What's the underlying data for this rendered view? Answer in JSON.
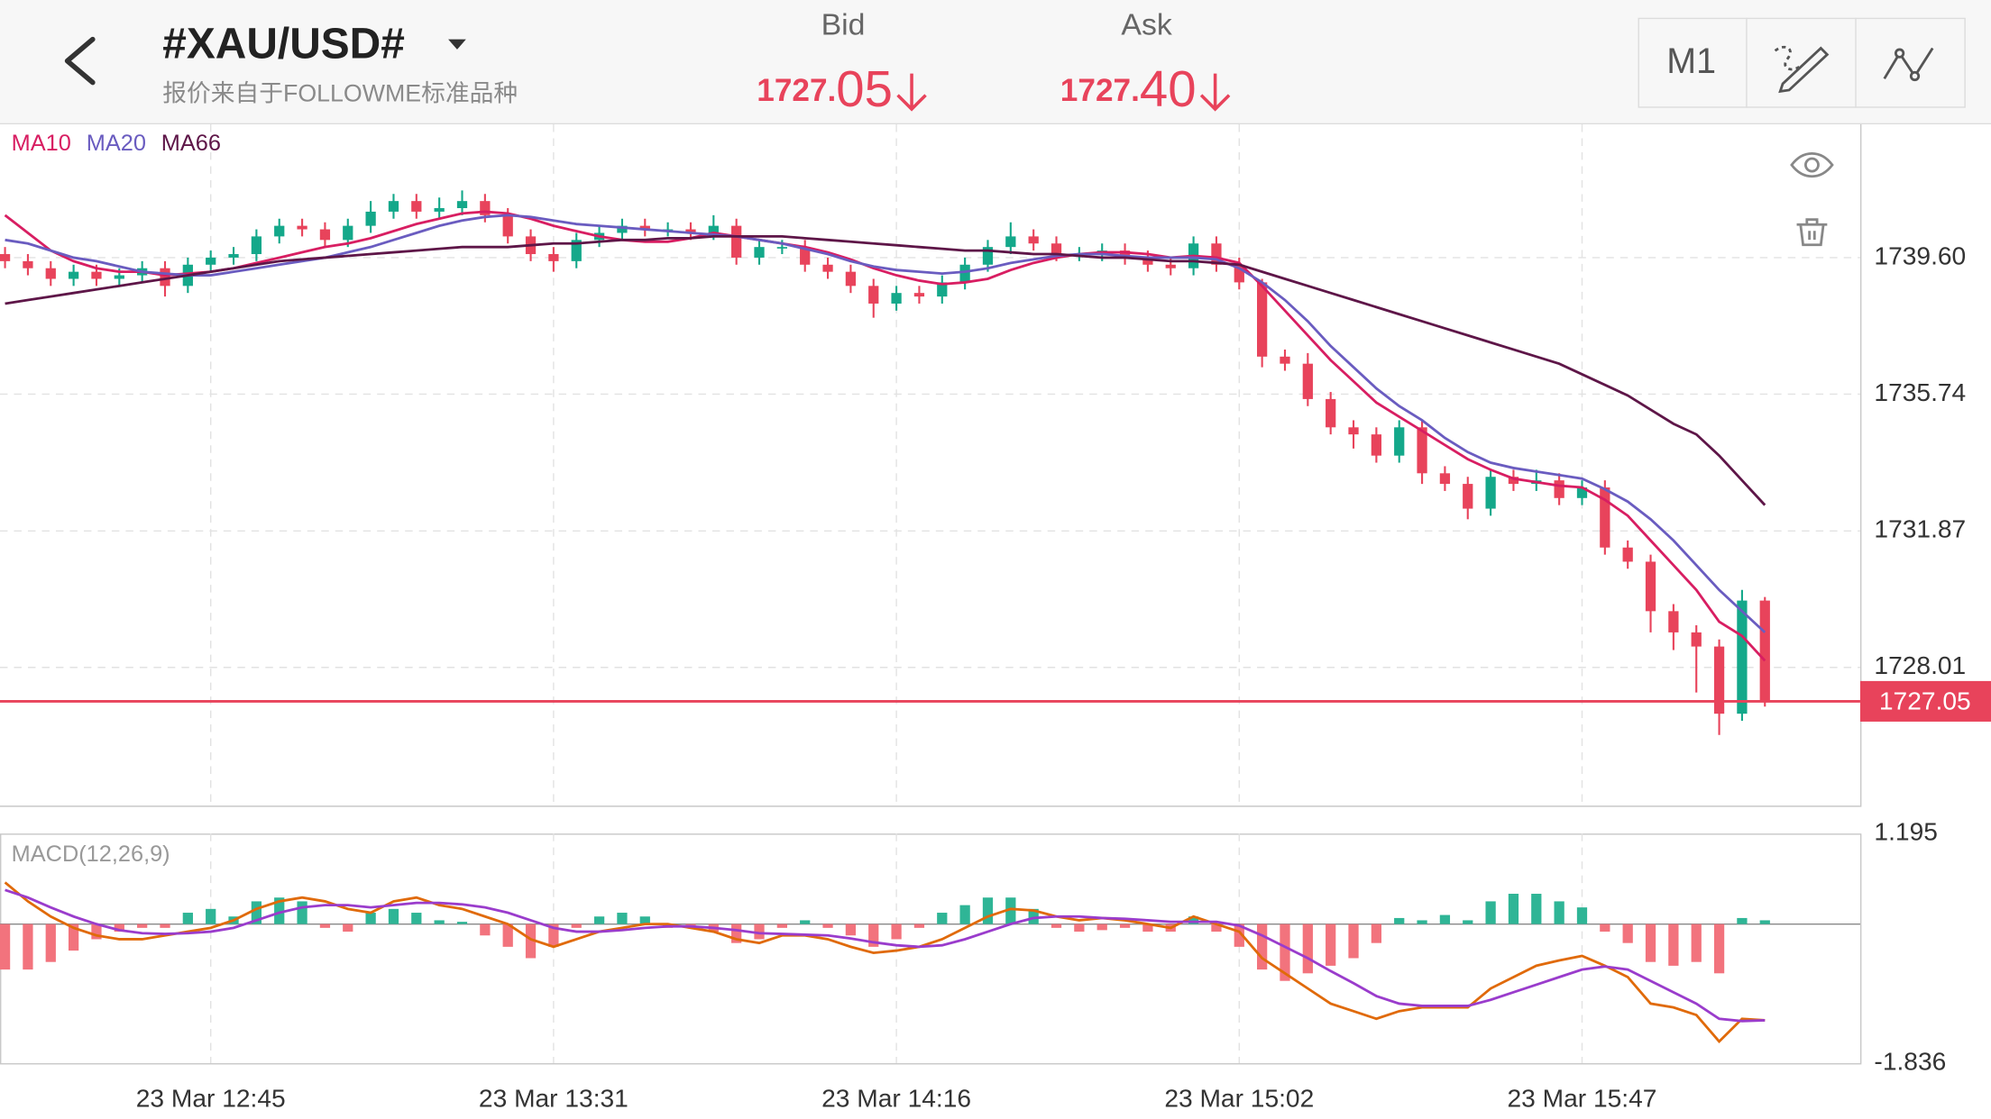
{
  "header": {
    "symbol": "#XAU/USD#",
    "source": "报价来自于FOLLOWME标准品种",
    "bid": {
      "label": "Bid",
      "price_lead": "1727.",
      "price_pips": "05"
    },
    "ask": {
      "label": "Ask",
      "price_lead": "1727.",
      "price_pips": "40"
    }
  },
  "toolbar": {
    "timeframe": "M1"
  },
  "chart_data": [
    {
      "type": "candlestick",
      "up_color": "#14a88a",
      "down_color": "#e8435b",
      "grid": true,
      "xlim": [
        -0.22,
        81.17
      ],
      "xticks": [
        {
          "value": 9,
          "label": "23 Mar 12:45"
        },
        {
          "value": 24,
          "label": "23 Mar 13:31"
        },
        {
          "value": 39,
          "label": "23 Mar 14:16"
        },
        {
          "value": 54,
          "label": "23 Mar 15:02"
        },
        {
          "value": 69,
          "label": "23 Mar 15:47"
        }
      ],
      "ylim": [
        1724.1,
        1743.37
      ],
      "yticks": [
        {
          "value": 1739.6,
          "label": "1739.60"
        },
        1735.74,
        1731.87,
        1728.01
      ],
      "current_price": 1727.05,
      "current_color": "#e8435b",
      "open": [
        1739.7,
        1739.5,
        1739.3,
        1739.0,
        1739.2,
        1739.0,
        1739.1,
        1739.3,
        1738.8,
        1739.4,
        1739.6,
        1739.7,
        1740.2,
        1740.5,
        1740.4,
        1740.1,
        1740.5,
        1740.9,
        1741.2,
        1740.9,
        1741.0,
        1741.2,
        1740.8,
        1740.2,
        1739.7,
        1739.5,
        1740.1,
        1740.3,
        1740.5,
        1740.4,
        1740.4,
        1740.3,
        1740.5,
        1739.6,
        1739.9,
        1739.9,
        1739.4,
        1739.2,
        1738.8,
        1738.3,
        1738.6,
        1738.5,
        1738.9,
        1739.4,
        1739.9,
        1740.2,
        1740.0,
        1739.7,
        1739.7,
        1739.8,
        1739.6,
        1739.4,
        1739.3,
        1740.0,
        1739.4,
        1738.9,
        1736.8,
        1736.6,
        1735.6,
        1734.8,
        1734.6,
        1734.0,
        1734.8,
        1733.5,
        1733.2,
        1732.5,
        1733.4,
        1733.2,
        1733.3,
        1732.8,
        1733.1,
        1731.4,
        1731.0,
        1729.6,
        1729.0,
        1728.6,
        1726.7,
        1729.9
      ],
      "high": [
        1739.9,
        1739.7,
        1739.5,
        1739.4,
        1739.4,
        1739.3,
        1739.5,
        1739.5,
        1739.6,
        1739.8,
        1739.9,
        1740.4,
        1740.7,
        1740.7,
        1740.6,
        1740.7,
        1741.2,
        1741.4,
        1741.4,
        1741.3,
        1741.5,
        1741.4,
        1741.0,
        1740.4,
        1739.9,
        1740.3,
        1740.5,
        1740.7,
        1740.7,
        1740.6,
        1740.6,
        1740.8,
        1740.7,
        1740.1,
        1740.1,
        1740.1,
        1739.6,
        1739.4,
        1739.0,
        1738.8,
        1738.8,
        1739.1,
        1739.6,
        1740.1,
        1740.6,
        1740.4,
        1740.2,
        1739.9,
        1740.0,
        1740.0,
        1739.8,
        1739.6,
        1740.2,
        1740.2,
        1739.6,
        1739.0,
        1737.0,
        1736.9,
        1735.8,
        1735.0,
        1734.8,
        1735.0,
        1735.0,
        1733.7,
        1733.4,
        1733.6,
        1733.6,
        1733.6,
        1733.5,
        1733.3,
        1733.3,
        1731.6,
        1731.2,
        1729.8,
        1729.2,
        1728.8,
        1730.2,
        1730.0
      ],
      "low": [
        1739.3,
        1739.1,
        1738.8,
        1738.8,
        1738.8,
        1738.8,
        1738.9,
        1738.5,
        1738.6,
        1739.2,
        1739.4,
        1739.5,
        1740.0,
        1740.2,
        1739.9,
        1739.9,
        1740.3,
        1740.7,
        1740.7,
        1740.7,
        1740.8,
        1740.6,
        1740.0,
        1739.5,
        1739.2,
        1739.3,
        1739.9,
        1740.1,
        1740.2,
        1740.2,
        1740.1,
        1740.1,
        1739.4,
        1739.4,
        1739.7,
        1739.2,
        1739.0,
        1738.6,
        1737.9,
        1738.1,
        1738.3,
        1738.3,
        1738.7,
        1739.2,
        1739.7,
        1739.8,
        1739.5,
        1739.5,
        1739.5,
        1739.4,
        1739.2,
        1739.1,
        1739.1,
        1739.2,
        1738.7,
        1736.5,
        1736.4,
        1735.4,
        1734.6,
        1734.2,
        1733.8,
        1733.8,
        1733.2,
        1733.0,
        1732.2,
        1732.3,
        1733.0,
        1733.0,
        1732.6,
        1732.6,
        1731.2,
        1730.8,
        1729.0,
        1728.5,
        1727.3,
        1726.1,
        1726.5,
        1726.9
      ],
      "close": [
        1739.5,
        1739.3,
        1739.0,
        1739.2,
        1739.0,
        1739.1,
        1739.3,
        1738.8,
        1739.4,
        1739.6,
        1739.7,
        1740.2,
        1740.5,
        1740.4,
        1740.1,
        1740.5,
        1740.9,
        1741.2,
        1740.9,
        1741.0,
        1741.2,
        1740.8,
        1740.2,
        1739.7,
        1739.5,
        1740.1,
        1740.3,
        1740.5,
        1740.4,
        1740.4,
        1740.3,
        1740.5,
        1739.6,
        1739.9,
        1739.9,
        1739.4,
        1739.2,
        1738.8,
        1738.3,
        1738.6,
        1738.5,
        1738.9,
        1739.4,
        1739.9,
        1740.2,
        1740.0,
        1739.7,
        1739.7,
        1739.8,
        1739.6,
        1739.4,
        1739.3,
        1740.0,
        1739.4,
        1738.9,
        1736.8,
        1736.6,
        1735.6,
        1734.8,
        1734.6,
        1734.0,
        1734.8,
        1733.5,
        1733.2,
        1732.5,
        1733.4,
        1733.2,
        1733.3,
        1732.8,
        1733.1,
        1731.4,
        1731.0,
        1729.6,
        1729.0,
        1728.6,
        1726.7,
        1729.9,
        1727.05
      ],
      "series": [
        {
          "name": "MA10",
          "color": "#d81e62",
          "values": [
            1740.8,
            1740.3,
            1739.8,
            1739.5,
            1739.3,
            1739.2,
            1739.2,
            1739.1,
            1739.15,
            1739.2,
            1739.3,
            1739.45,
            1739.6,
            1739.75,
            1739.9,
            1740.0,
            1740.15,
            1740.35,
            1740.55,
            1740.7,
            1740.85,
            1740.9,
            1740.85,
            1740.7,
            1740.5,
            1740.35,
            1740.2,
            1740.1,
            1740.05,
            1740.05,
            1740.15,
            1740.3,
            1740.2,
            1740.1,
            1740.0,
            1739.9,
            1739.75,
            1739.55,
            1739.3,
            1739.1,
            1738.95,
            1738.85,
            1738.9,
            1739.0,
            1739.25,
            1739.45,
            1739.6,
            1739.7,
            1739.75,
            1739.75,
            1739.7,
            1739.6,
            1739.65,
            1739.6,
            1739.45,
            1738.8,
            1738.1,
            1737.4,
            1736.7,
            1736.1,
            1735.5,
            1735.1,
            1734.7,
            1734.3,
            1733.9,
            1733.6,
            1733.35,
            1733.25,
            1733.15,
            1733.1,
            1732.75,
            1732.3,
            1731.6,
            1730.9,
            1730.2,
            1729.3,
            1728.9,
            1728.2
          ]
        },
        {
          "name": "MA20",
          "color": "#6a5cc0",
          "values": [
            1740.1,
            1740.0,
            1739.8,
            1739.6,
            1739.5,
            1739.35,
            1739.2,
            1739.15,
            1739.1,
            1739.1,
            1739.2,
            1739.3,
            1739.4,
            1739.5,
            1739.6,
            1739.75,
            1739.9,
            1740.1,
            1740.3,
            1740.5,
            1740.65,
            1740.75,
            1740.8,
            1740.75,
            1740.65,
            1740.55,
            1740.5,
            1740.45,
            1740.4,
            1740.35,
            1740.3,
            1740.25,
            1740.2,
            1740.1,
            1740.0,
            1739.85,
            1739.7,
            1739.5,
            1739.35,
            1739.25,
            1739.2,
            1739.15,
            1739.2,
            1739.3,
            1739.45,
            1739.55,
            1739.65,
            1739.7,
            1739.7,
            1739.65,
            1739.6,
            1739.6,
            1739.6,
            1739.55,
            1739.3,
            1738.9,
            1738.4,
            1737.8,
            1737.1,
            1736.5,
            1735.9,
            1735.4,
            1735.0,
            1734.5,
            1734.1,
            1733.8,
            1733.65,
            1733.55,
            1733.45,
            1733.35,
            1733.05,
            1732.7,
            1732.2,
            1731.6,
            1730.9,
            1730.2,
            1729.6,
            1729.0
          ]
        },
        {
          "name": "MA66",
          "color": "#5e1648",
          "values": [
            1738.3,
            1738.4,
            1738.5,
            1738.6,
            1738.7,
            1738.8,
            1738.9,
            1739.0,
            1739.1,
            1739.2,
            1739.3,
            1739.4,
            1739.5,
            1739.55,
            1739.6,
            1739.65,
            1739.7,
            1739.75,
            1739.8,
            1739.85,
            1739.9,
            1739.9,
            1739.9,
            1739.95,
            1740.0,
            1740.0,
            1740.05,
            1740.1,
            1740.1,
            1740.15,
            1740.15,
            1740.2,
            1740.2,
            1740.2,
            1740.2,
            1740.15,
            1740.1,
            1740.05,
            1740.0,
            1739.95,
            1739.9,
            1739.85,
            1739.8,
            1739.8,
            1739.75,
            1739.7,
            1739.7,
            1739.65,
            1739.6,
            1739.6,
            1739.55,
            1739.5,
            1739.5,
            1739.45,
            1739.4,
            1739.2,
            1739.0,
            1738.8,
            1738.6,
            1738.4,
            1738.2,
            1738.0,
            1737.8,
            1737.6,
            1737.4,
            1737.2,
            1737.0,
            1736.8,
            1736.6,
            1736.3,
            1736.0,
            1735.7,
            1735.3,
            1734.9,
            1734.6,
            1734.0,
            1733.3,
            1732.6
          ]
        }
      ]
    },
    {
      "type": "macd",
      "label": "MACD(12,26,9)",
      "ylim": [
        -1.836,
        1.195
      ],
      "yticks": [
        1.195,
        -1.836
      ],
      "histogram": {
        "up_color": "#2fb596",
        "down_color": "#f2737d",
        "values": [
          -0.6,
          -0.6,
          -0.5,
          -0.35,
          -0.2,
          -0.1,
          -0.05,
          -0.05,
          0.15,
          0.2,
          0.1,
          0.3,
          0.35,
          0.3,
          -0.05,
          -0.1,
          0.15,
          0.2,
          0.15,
          0.05,
          0.03,
          -0.15,
          -0.3,
          -0.45,
          -0.3,
          -0.05,
          0.1,
          0.15,
          0.1,
          -0.05,
          -0.05,
          -0.1,
          -0.25,
          -0.2,
          -0.05,
          0.05,
          -0.05,
          -0.15,
          -0.3,
          -0.2,
          -0.05,
          0.15,
          0.25,
          0.35,
          0.35,
          0.2,
          -0.05,
          -0.1,
          -0.08,
          -0.05,
          -0.1,
          -0.1,
          0.1,
          -0.1,
          -0.3,
          -0.6,
          -0.75,
          -0.65,
          -0.55,
          -0.45,
          -0.25,
          0.08,
          0.05,
          0.12,
          0.05,
          0.3,
          0.4,
          0.4,
          0.3,
          0.22,
          -0.1,
          -0.25,
          -0.5,
          -0.55,
          -0.5,
          -0.65,
          0.08,
          0.05
        ]
      },
      "series": [
        {
          "color": "#e06a0a",
          "values": [
            0.55,
            0.3,
            0.1,
            -0.05,
            -0.15,
            -0.2,
            -0.2,
            -0.15,
            -0.1,
            -0.05,
            0.05,
            0.2,
            0.3,
            0.35,
            0.3,
            0.2,
            0.15,
            0.3,
            0.35,
            0.25,
            0.2,
            0.1,
            0.0,
            -0.2,
            -0.3,
            -0.2,
            -0.1,
            -0.05,
            0.0,
            0.0,
            -0.05,
            -0.1,
            -0.2,
            -0.25,
            -0.15,
            -0.15,
            -0.2,
            -0.3,
            -0.38,
            -0.35,
            -0.3,
            -0.2,
            -0.05,
            0.1,
            0.2,
            0.18,
            0.1,
            0.05,
            0.08,
            0.05,
            0.0,
            -0.05,
            0.1,
            0.0,
            -0.1,
            -0.45,
            -0.65,
            -0.85,
            -1.05,
            -1.15,
            -1.25,
            -1.15,
            -1.1,
            -1.1,
            -1.1,
            -0.85,
            -0.7,
            -0.55,
            -0.48,
            -0.42,
            -0.55,
            -0.7,
            -1.05,
            -1.1,
            -1.2,
            -1.55,
            -1.25,
            -1.27
          ]
        },
        {
          "color": "#9a3ccc",
          "values": [
            0.45,
            0.35,
            0.22,
            0.1,
            0.0,
            -0.08,
            -0.12,
            -0.13,
            -0.12,
            -0.1,
            -0.05,
            0.05,
            0.15,
            0.22,
            0.25,
            0.25,
            0.22,
            0.25,
            0.28,
            0.28,
            0.26,
            0.22,
            0.15,
            0.05,
            -0.05,
            -0.1,
            -0.1,
            -0.08,
            -0.05,
            -0.03,
            -0.03,
            -0.05,
            -0.08,
            -0.12,
            -0.13,
            -0.14,
            -0.15,
            -0.19,
            -0.24,
            -0.28,
            -0.3,
            -0.28,
            -0.2,
            -0.1,
            0.0,
            0.08,
            0.1,
            0.1,
            0.08,
            0.07,
            0.05,
            0.03,
            0.03,
            0.03,
            -0.02,
            -0.15,
            -0.3,
            -0.45,
            -0.62,
            -0.78,
            -0.95,
            -1.05,
            -1.08,
            -1.08,
            -1.08,
            -1.0,
            -0.9,
            -0.8,
            -0.7,
            -0.6,
            -0.56,
            -0.6,
            -0.75,
            -0.9,
            -1.05,
            -1.25,
            -1.28,
            -1.27
          ]
        }
      ]
    }
  ]
}
